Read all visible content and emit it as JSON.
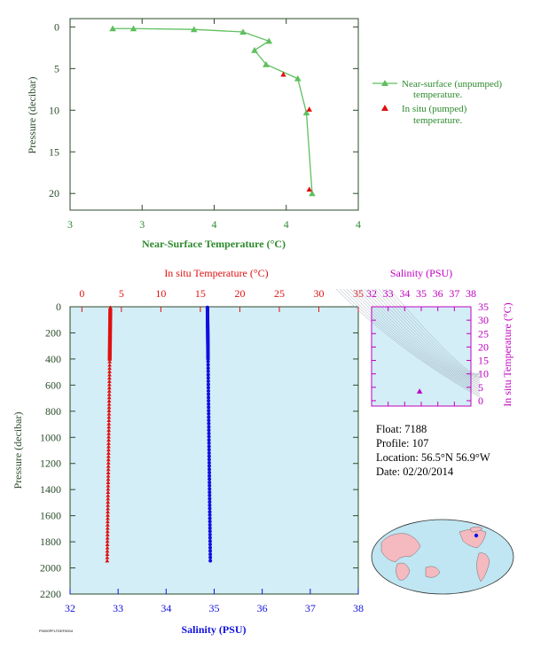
{
  "colors": {
    "green": "#5fbf5f",
    "green_text": "#2d8a2d",
    "dark_axis": "#2b4b2b",
    "red": "#e01010",
    "blue": "#1010e0",
    "magenta": "#c000c0",
    "panel_bg": "#d3eef7"
  },
  "chart_data": [
    {
      "type": "line",
      "xlabel": "Near-Surface Temperature (°C)",
      "ylabel": "Pressure (decibar)",
      "xlim": [
        3,
        4
      ],
      "ylim": [
        22,
        -1
      ],
      "x_ticks": [
        "3",
        "3",
        "4",
        "4",
        "4"
      ],
      "y_ticks": [
        "0",
        "5",
        "10",
        "15",
        "20"
      ],
      "legend": [
        "Near-surface (unpumped) temperature.",
        "In situ (pumped) temperature."
      ],
      "legend_position": "right",
      "series": [
        {
          "name": "Near-surface (unpumped) temperature.",
          "x": [
            3.148,
            3.22,
            3.43,
            3.6,
            3.69,
            3.64,
            3.68,
            3.79,
            3.82,
            3.84
          ],
          "y": [
            0.2,
            0.2,
            0.3,
            0.6,
            1.7,
            2.8,
            4.5,
            6.2,
            10.3,
            20.0
          ]
        },
        {
          "name": "In situ (pumped) temperature.",
          "x": [
            3.74,
            3.83,
            3.83
          ],
          "y": [
            5.7,
            9.9,
            19.5
          ]
        }
      ]
    },
    {
      "type": "scatter",
      "top_xlabel": "In situ Temperature (°C)",
      "top_ticks": [
        "0",
        "5",
        "10",
        "15",
        "20",
        "25",
        "30",
        "35"
      ],
      "bottom_xlabel": "Salinity (PSU)",
      "bottom_ticks": [
        "32",
        "33",
        "34",
        "35",
        "36",
        "37",
        "38"
      ],
      "ylabel": "Pressure (decibar)",
      "y_ticks": [
        "0",
        "200",
        "400",
        "600",
        "800",
        "1000",
        "1200",
        "1400",
        "1600",
        "1800",
        "2000",
        "2200"
      ],
      "temp_xlim": [
        -1.5,
        35
      ],
      "sal_xlim": [
        32,
        38
      ],
      "ylim": [
        2200,
        0
      ],
      "series": [
        {
          "name": "In situ Temperature (°C)",
          "pressure": [
            5,
            1950
          ],
          "values": [
            3.6,
            3.2
          ]
        },
        {
          "name": "Salinity (PSU)",
          "pressure": [
            5,
            1950
          ],
          "values": [
            34.86,
            34.92
          ]
        }
      ]
    },
    {
      "type": "scatter",
      "top_xlabel": "Salinity (PSU)",
      "top_ticks": [
        "32",
        "33",
        "34",
        "35",
        "36",
        "37",
        "38"
      ],
      "right_ylabel": "In situ Temperature (°C)",
      "right_ticks": [
        "0",
        "5",
        "10",
        "15",
        "20",
        "25",
        "30",
        "35"
      ],
      "xlim": [
        32,
        38
      ],
      "ylim": [
        -2,
        35
      ],
      "points": [
        {
          "x": 34.9,
          "y": 3.5
        }
      ]
    }
  ],
  "info": {
    "float": "Float:  7188",
    "profile": "Profile:  107",
    "location": "Location:  56.5°N  56.9°W",
    "date": "Date:  02/20/2014"
  },
  "footer_code": "P0000PFLTDEF0004"
}
